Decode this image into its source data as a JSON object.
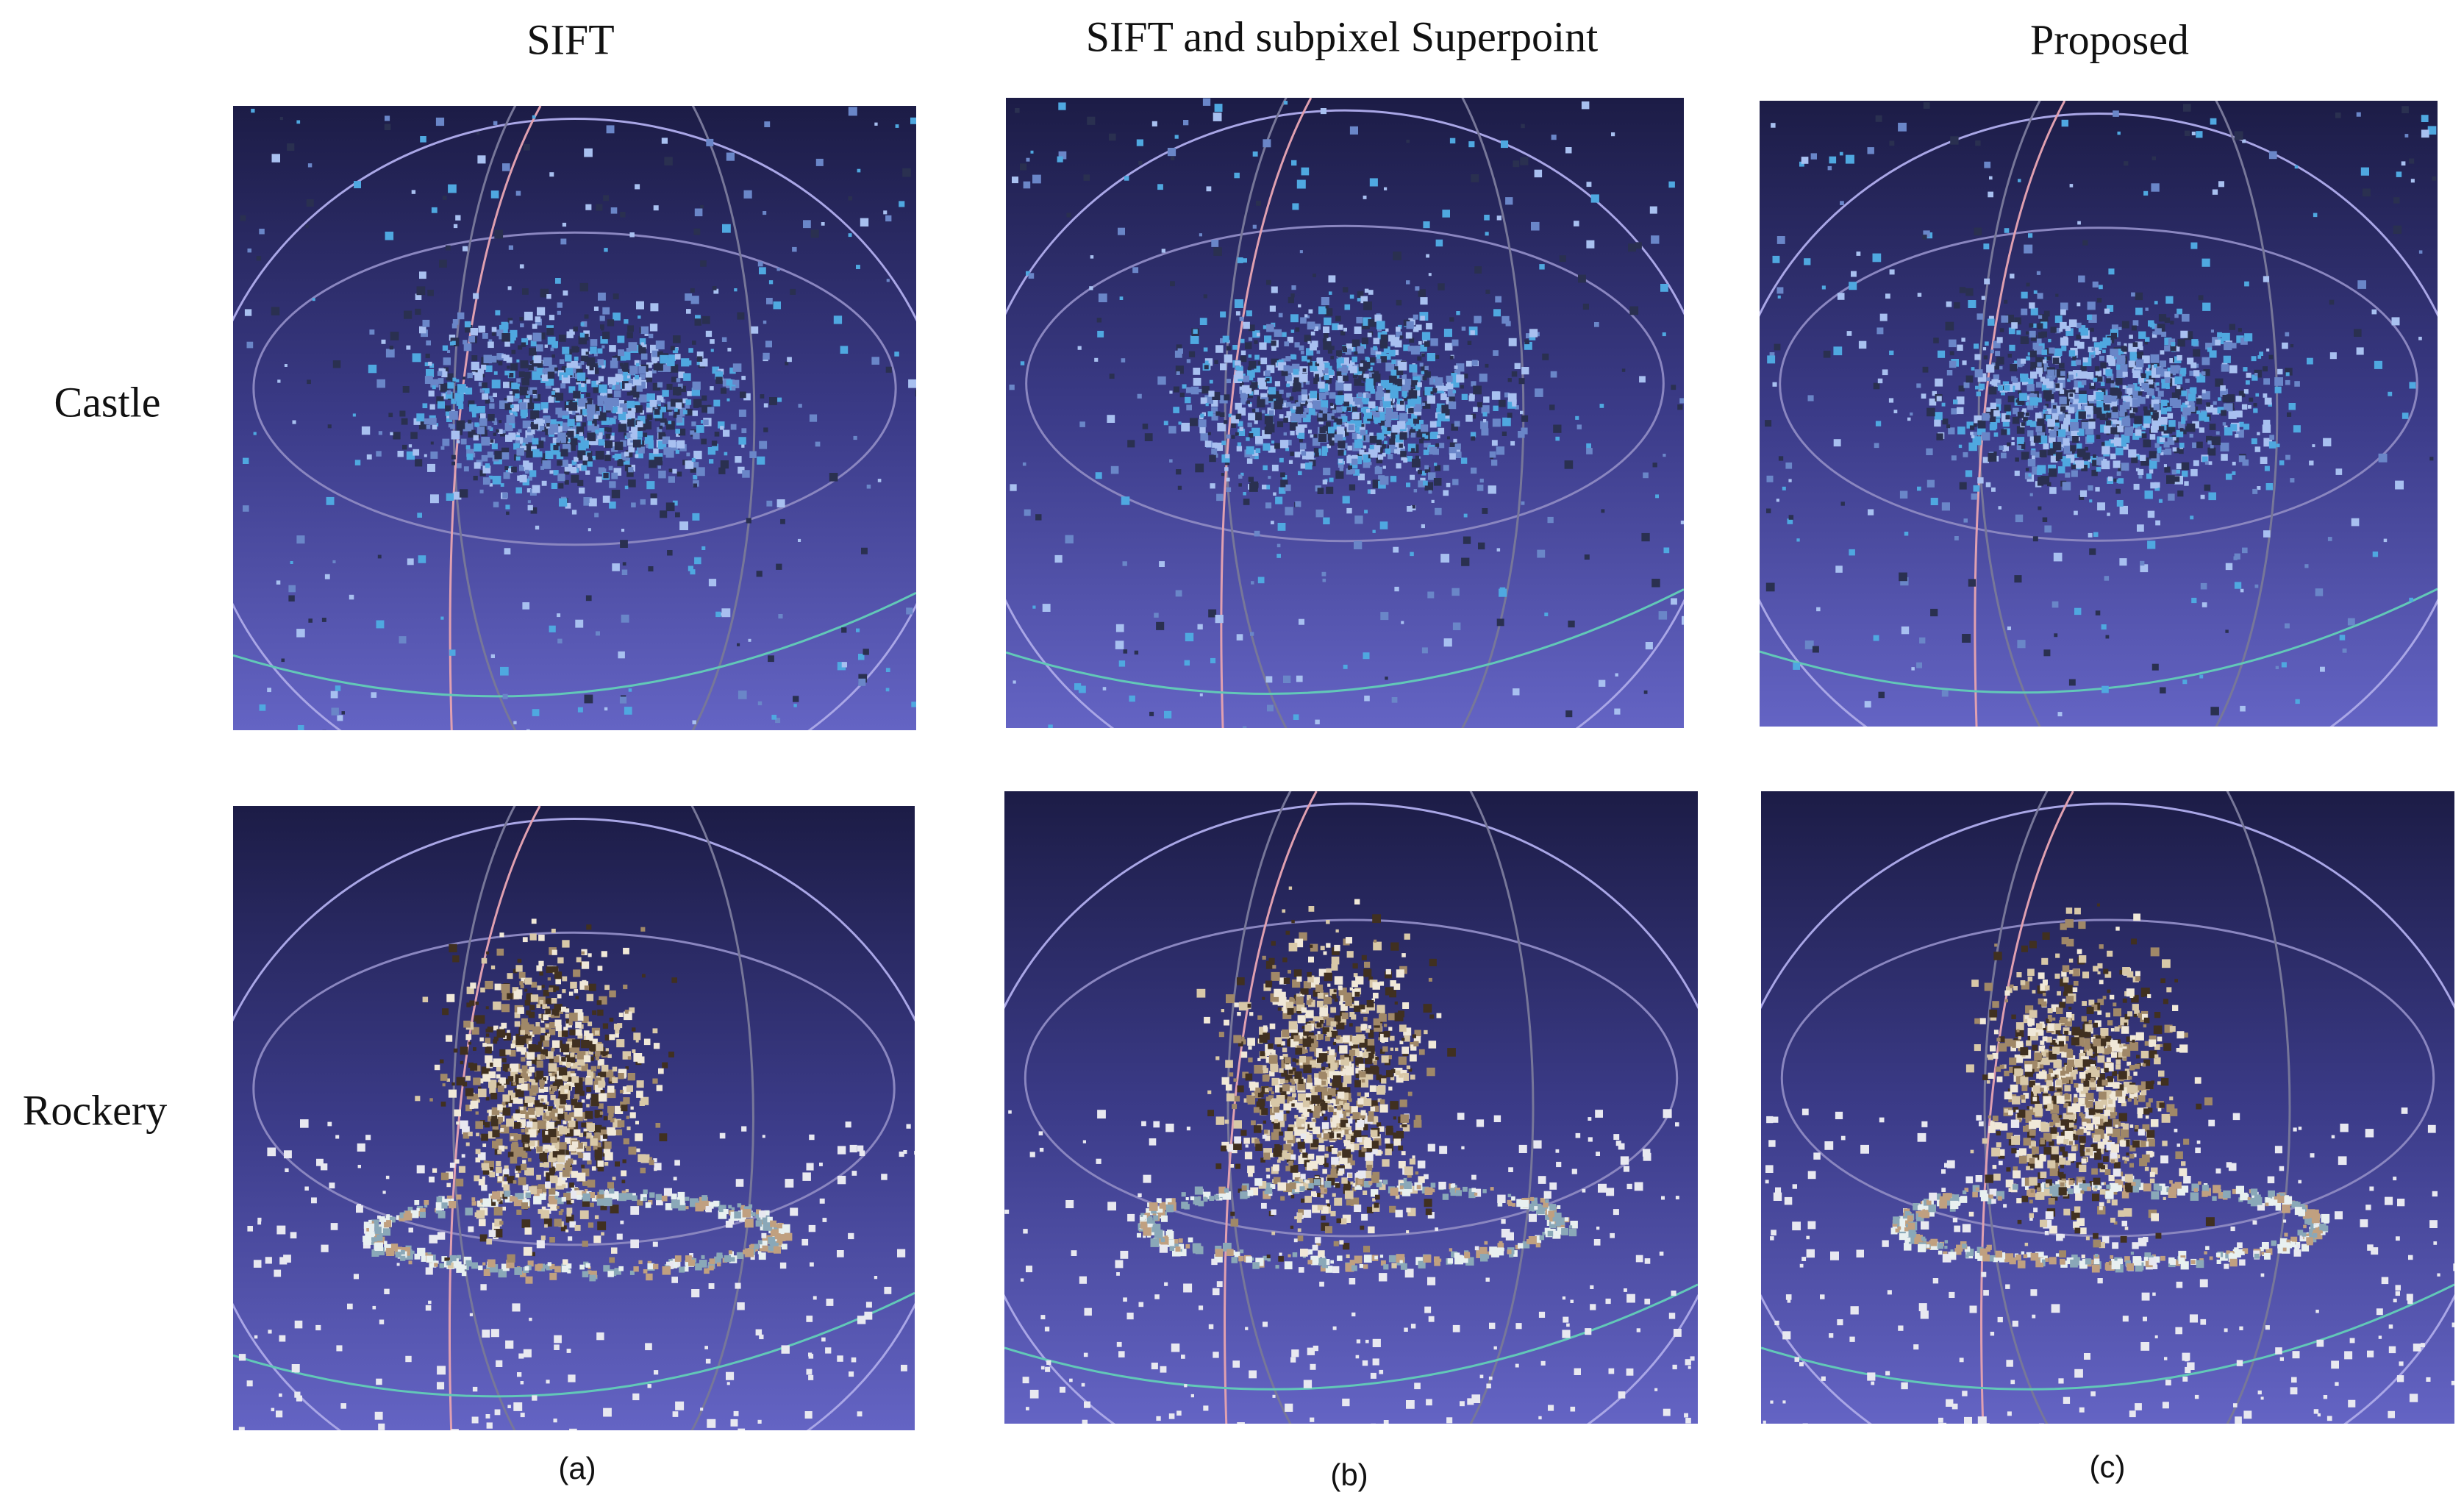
{
  "columns": [
    "SIFT",
    "SIFT and subpixel Superpoint",
    "Proposed"
  ],
  "rows": [
    "Castle",
    "Rockery"
  ],
  "captions": [
    "(a)",
    "(b)",
    "(c)"
  ]
}
